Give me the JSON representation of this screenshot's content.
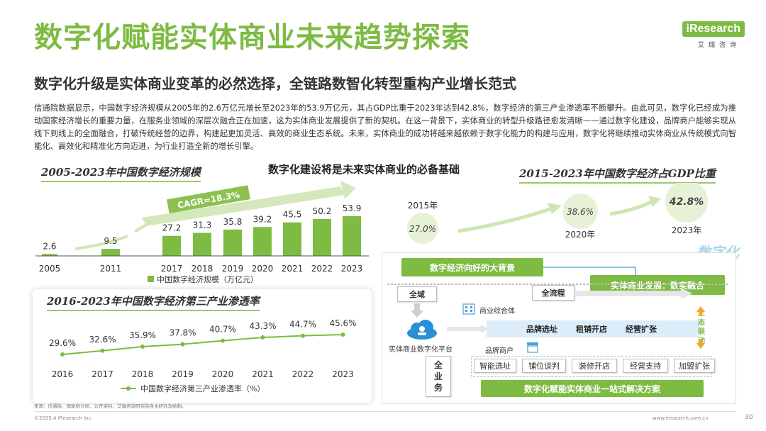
{
  "header": {
    "title": "数字化赋能实体商业未来趋势探索",
    "logo": "iResearch",
    "logo_sub": "艾瑞咨询",
    "subtitle": "数字化升级是实体商业变革的必然选择，全链路数智化转型重构产业增长范式",
    "body": "信通院数据显示，中国数字经济规模从2005年的2.6万亿元增长至2023年的53.9万亿元，其占GDP比重于2023年达到42.8%，数字经济的第三产业渗透率不断攀升。由此可见，数字化已经成为推动国家经济增长的重要力量，在服务业领域的深层次融合正在加速，这为实体商业发展提供了新的契机。在这一背景下，实体商业的转型升级路径愈发清晰——通过数字化建设，品牌商户能够实现从线下到线上的全面融合，打破传统经营的边界，构建起更加灵活、高效的商业生态系统。未来，实体商业的成功将越来越依赖于数字化能力的构建与应用，数字化将继续推动实体商业从传统模式向智能化、高效化和精准化方向迈进，为行业打造全新的增长引擎。"
  },
  "center_title": "数字化建设将是未来实体商业的必备基础",
  "chart_data": [
    {
      "type": "bar",
      "title": "2005-2023年中国数字经济规模",
      "categories": [
        "2005",
        "2011",
        "2017",
        "2018",
        "2019",
        "2020",
        "2021",
        "2022",
        "2023"
      ],
      "values": [
        2.6,
        9.5,
        27.2,
        31.3,
        35.8,
        39.2,
        45.5,
        50.2,
        53.9
      ],
      "labels": [
        "2.6",
        "9.5",
        "27.2",
        "31.3",
        "35.8",
        "39.2",
        "45.5",
        "50.2",
        "53.9"
      ],
      "legend": "中国数字经济规模（万亿元）",
      "annotation": "CAGR=18.3%",
      "color": "#7dbb42"
    },
    {
      "type": "line",
      "title": "2016-2023年中国数字经济第三产业渗透率",
      "categories": [
        "2016",
        "2017",
        "2018",
        "2019",
        "2020",
        "2021",
        "2022",
        "2023"
      ],
      "values": [
        29.6,
        32.6,
        35.9,
        37.8,
        40.7,
        43.3,
        44.7,
        45.6
      ],
      "labels": [
        "29.6%",
        "32.6%",
        "35.9%",
        "37.8%",
        "40.7%",
        "43.3%",
        "44.7%",
        "45.6%"
      ],
      "legend": "中国数字经济第三产业渗透率（%）",
      "color": "#7dbb42"
    },
    {
      "type": "scatter",
      "title": "2015-2023年中国数字经济占GDP比重",
      "categories": [
        "2015年",
        "2020年",
        "2023年"
      ],
      "values": [
        27.0,
        38.6,
        42.8
      ],
      "labels": [
        "27.0%",
        "38.6%",
        "42.8%"
      ],
      "color": "#7dbb42"
    }
  ],
  "diagram": {
    "watermark": "数字化",
    "background": "数字经济向好的大背景",
    "development": "实体商业发展：数实融合",
    "all_domain": "全域",
    "all_process": "全流程",
    "complex": "商业综合体",
    "platform": "实体商业数字化平台",
    "merchant": "品牌商户",
    "bar_items": [
      "品牌选址",
      "租铺开店",
      "经营扩张"
    ],
    "eco": "生态联动",
    "all_business": "全业务",
    "services": [
      "智能选址",
      "铺位谈判",
      "装修开店",
      "经营支持",
      "加盟扩张"
    ],
    "solution": "数字化赋能实体商业一站式解决方案"
  },
  "footer": {
    "source": "来源：信通院、国家统计局、公开资料、艾瑞咨询研究院自主研究及绘制。",
    "copyright": "©2025.4 iResearch Inc.",
    "url": "www.iresearch.com.cn",
    "page": "30"
  }
}
